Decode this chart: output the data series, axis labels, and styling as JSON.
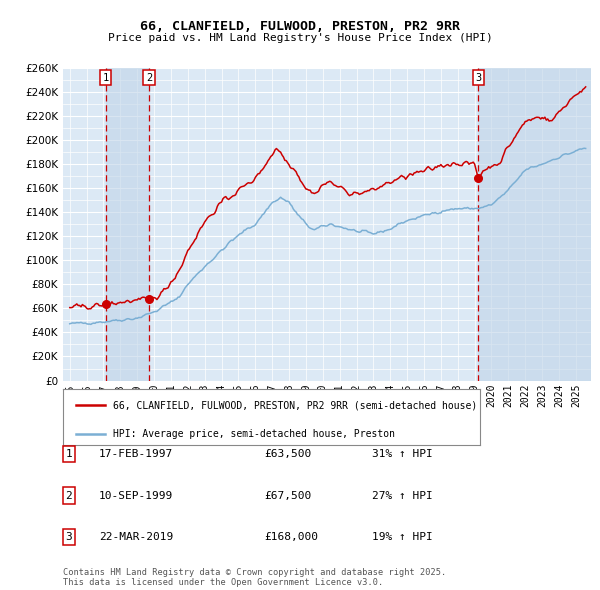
{
  "title": "66, CLANFIELD, FULWOOD, PRESTON, PR2 9RR",
  "subtitle": "Price paid vs. HM Land Registry's House Price Index (HPI)",
  "background_color": "#ffffff",
  "plot_bg_color": "#dce9f5",
  "grid_color": "#ffffff",
  "hpi_line_color": "#7bafd4",
  "price_line_color": "#cc0000",
  "sale_marker_color": "#cc0000",
  "vline_color": "#cc0000",
  "vline_shade_color": "#c0d4e8",
  "ylim": [
    0,
    260000
  ],
  "ytick_step": 20000,
  "legend_label_price": "66, CLANFIELD, FULWOOD, PRESTON, PR2 9RR (semi-detached house)",
  "legend_label_hpi": "HPI: Average price, semi-detached house, Preston",
  "sales": [
    {
      "num": 1,
      "date": "17-FEB-1997",
      "price": 63500,
      "pct": "31%",
      "x_year": 1997.12
    },
    {
      "num": 2,
      "date": "10-SEP-1999",
      "price": 67500,
      "pct": "27%",
      "x_year": 1999.7
    },
    {
      "num": 3,
      "date": "22-MAR-2019",
      "price": 168000,
      "pct": "19%",
      "x_year": 2019.22
    }
  ],
  "footer": "Contains HM Land Registry data © Crown copyright and database right 2025.\nThis data is licensed under the Open Government Licence v3.0.",
  "table_rows": [
    {
      "num": 1,
      "date": "17-FEB-1997",
      "price": "£63,500",
      "pct": "31% ↑ HPI"
    },
    {
      "num": 2,
      "date": "10-SEP-1999",
      "price": "£67,500",
      "pct": "27% ↑ HPI"
    },
    {
      "num": 3,
      "date": "22-MAR-2019",
      "price": "£168,000",
      "pct": "19% ↑ HPI"
    }
  ],
  "xmin": 1994.6,
  "xmax": 2025.9
}
